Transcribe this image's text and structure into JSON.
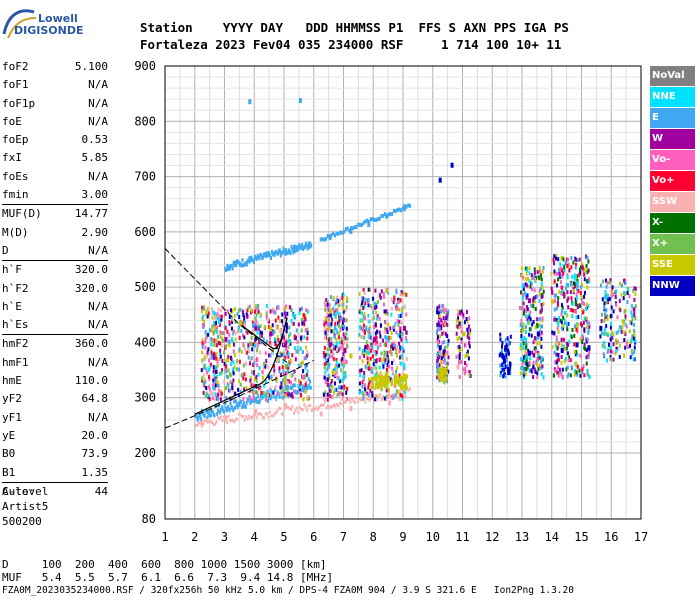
{
  "logo": {
    "line1": "Lowell",
    "line2": "DIGISONDE"
  },
  "header": {
    "line1": "Station    YYYY DAY   DDD HHMMSS P1  FFS S AXN PPS IGA PS",
    "line2": "Fortaleza 2023 Fev04 035 234000 RSF     1 714 100 10+ 11"
  },
  "params": [
    [
      {
        "name": "foF2",
        "value": "5.100"
      },
      {
        "name": "foF1",
        "value": "N/A"
      },
      {
        "name": "foF1p",
        "value": "N/A"
      },
      {
        "name": "foE",
        "value": "N/A"
      },
      {
        "name": "foEp",
        "value": "0.53"
      },
      {
        "name": "fxI",
        "value": "5.85"
      },
      {
        "name": "foEs",
        "value": "N/A"
      },
      {
        "name": "fmin",
        "value": "3.00"
      }
    ],
    [
      {
        "name": "MUF(D)",
        "value": "14.77"
      },
      {
        "name": "M(D)",
        "value": "2.90"
      },
      {
        "name": "D",
        "value": "N/A"
      }
    ],
    [
      {
        "name": "h`F",
        "value": "320.0"
      },
      {
        "name": "h`F2",
        "value": "320.0"
      },
      {
        "name": "h`E",
        "value": "N/A"
      },
      {
        "name": "h`Es",
        "value": "N/A"
      }
    ],
    [
      {
        "name": "hmF2",
        "value": "360.0"
      },
      {
        "name": "hmF1",
        "value": "N/A"
      },
      {
        "name": "hmE",
        "value": "110.0"
      },
      {
        "name": "yF2",
        "value": "64.8"
      },
      {
        "name": "yF1",
        "value": "N/A"
      },
      {
        "name": "yE",
        "value": "20.0"
      },
      {
        "name": "B0",
        "value": "73.9"
      },
      {
        "name": "B1",
        "value": "1.35"
      }
    ],
    [
      {
        "name": "C-level",
        "value": "44"
      }
    ]
  ],
  "auto": {
    "line1": "Auto:",
    "line2": "Artist5",
    "line3": "500200"
  },
  "legend": [
    {
      "label": "NoVal",
      "color": "#808080",
      "text_color": "#ffffff"
    },
    {
      "label": "NNE",
      "color": "#00e0ff",
      "text_color": "#ffffff"
    },
    {
      "label": "E",
      "color": "#40a8f0",
      "text_color": "#ffffff"
    },
    {
      "label": "W",
      "color": "#a000a0",
      "text_color": "#ffffff"
    },
    {
      "label": "Vo-",
      "color": "#ff60c0",
      "text_color": "#ffffff"
    },
    {
      "label": "Vo+",
      "color": "#ff0030",
      "text_color": "#ffffff"
    },
    {
      "label": "SSW",
      "color": "#f8b0b0",
      "text_color": "#ffffff"
    },
    {
      "label": "X-",
      "color": "#007000",
      "text_color": "#ffffff"
    },
    {
      "label": "X+",
      "color": "#70c050",
      "text_color": "#ffffff"
    },
    {
      "label": "SSE",
      "color": "#c8c800",
      "text_color": "#ffffff"
    },
    {
      "label": "NNW",
      "color": "#0000c0",
      "text_color": "#ffffff"
    }
  ],
  "chart_data": {
    "type": "scatter",
    "title": "",
    "xlabel": "",
    "ylabel": "",
    "x_ticks": [
      "1",
      "2",
      "3",
      "4",
      "5",
      "6",
      "7",
      "8",
      "9",
      "10",
      "11",
      "12",
      "13",
      "14",
      "15",
      "16",
      "17"
    ],
    "y_ticks": [
      "80",
      "200",
      "300",
      "400",
      "500",
      "600",
      "700",
      "800",
      "900"
    ],
    "ylim": [
      80,
      900
    ],
    "grid": true,
    "series": [
      {
        "name": "E",
        "color": "#40a8f0",
        "points": [
          [
            3.3,
            548
          ],
          [
            3.8,
            556
          ],
          [
            4.3,
            563
          ],
          [
            4.8,
            570
          ],
          [
            5.3,
            577
          ],
          [
            5.8,
            583
          ],
          [
            6.5,
            594
          ],
          [
            7.2,
            605
          ],
          [
            7.8,
            618
          ],
          [
            8.4,
            633
          ],
          [
            9.0,
            650
          ],
          [
            3.8,
            840
          ],
          [
            5.5,
            842
          ]
        ]
      },
      {
        "name": "NNW",
        "color": "#0000c0",
        "points": [
          [
            10.2,
            395
          ],
          [
            10.2,
            698
          ],
          [
            10.6,
            725
          ],
          [
            12.3,
            380
          ],
          [
            12.5,
            350
          ],
          [
            13.2,
            385
          ],
          [
            13.5,
            420
          ],
          [
            14.3,
            390
          ],
          [
            14.8,
            400
          ],
          [
            15.2,
            395
          ],
          [
            15.6,
            430
          ]
        ]
      },
      {
        "name": "W",
        "color": "#a000a0",
        "points": [
          [
            2.6,
            380
          ],
          [
            3.0,
            410
          ],
          [
            3.5,
            440
          ],
          [
            4.0,
            430
          ],
          [
            4.5,
            420
          ],
          [
            5.0,
            400
          ],
          [
            6.5,
            400
          ],
          [
            7.0,
            390
          ],
          [
            8.0,
            410
          ],
          [
            9.0,
            430
          ],
          [
            13.2,
            480
          ]
        ]
      },
      {
        "name": "SSE",
        "color": "#c8c800",
        "points": [
          [
            3.5,
            440
          ],
          [
            4.5,
            430
          ],
          [
            6.6,
            350
          ],
          [
            7.2,
            380
          ],
          [
            8.2,
            340
          ],
          [
            9.0,
            340
          ],
          [
            10.2,
            345
          ],
          [
            11.0,
            420
          ]
        ]
      },
      {
        "name": "SSW",
        "color": "#f8b0b0",
        "points": [
          [
            2.2,
            258
          ],
          [
            3.0,
            268
          ],
          [
            4.0,
            280
          ],
          [
            5.0,
            290
          ],
          [
            6.2,
            275
          ],
          [
            7.2,
            285
          ],
          [
            8.5,
            295
          ],
          [
            10.8,
            360
          ]
        ]
      }
    ]
  },
  "footer": {
    "d_row": "D     100  200  400  600  800 1000 1500 3000 [km]",
    "muf_row": "MUF   5.4  5.5  5.7  6.1  6.6  7.3  9.4 14.8 [MHz]",
    "info": "FZA0M_2023035234000.RSF / 320fx256h 50 kHz 5.0 km / DPS-4 FZA0M 904 / 3.9 S 321.6 E   Ion2Png 1.3.20"
  }
}
